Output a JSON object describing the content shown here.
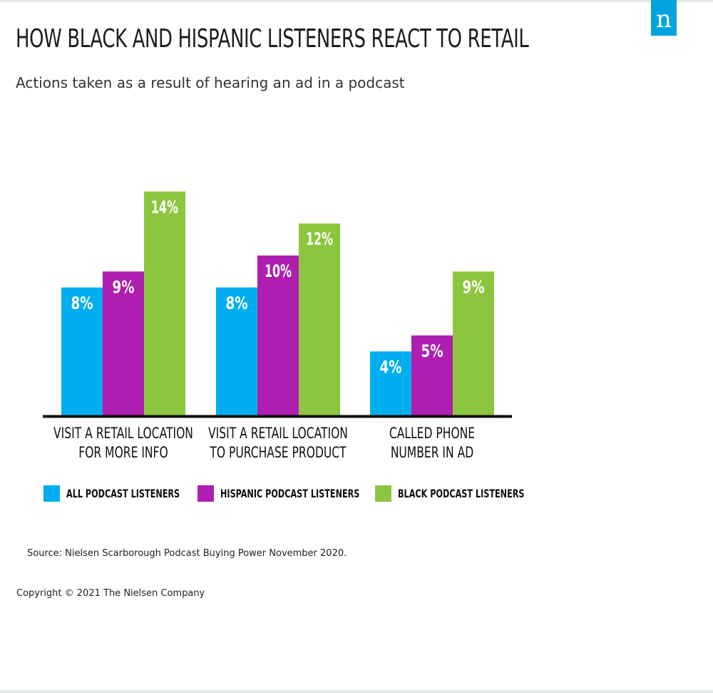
{
  "brand": {
    "logo_letter": "n",
    "logo_color": "#00a3e0"
  },
  "chart_data": {
    "type": "bar",
    "title": "HOW BLACK AND HISPANIC LISTENERS REACT TO RETAIL",
    "subtitle": "Actions taken as a result of hearing an ad in a podcast",
    "categories": [
      [
        "VISIT A RETAIL LOCATION",
        "FOR MORE INFO"
      ],
      [
        "VISIT A RETAIL LOCATION",
        "TO PURCHASE PRODUCT"
      ],
      [
        "CALLED PHONE",
        "NUMBER IN AD"
      ]
    ],
    "series": [
      {
        "name": "ALL PODCAST LISTENERS",
        "color": "#00aeef",
        "values": [
          8,
          8,
          4
        ]
      },
      {
        "name": "HISPANIC PODCAST LISTENERS",
        "color": "#ae1eb0",
        "values": [
          9,
          10,
          5
        ]
      },
      {
        "name": "BLACK PODCAST LISTENERS",
        "color": "#8cc63f",
        "values": [
          14,
          12,
          9
        ]
      }
    ],
    "value_suffix": "%",
    "ylim": [
      0,
      14
    ],
    "grid": false,
    "legend_position": "bottom"
  },
  "footer": {
    "source": "Source: Nielsen Scarborough Podcast Buying Power November 2020.",
    "copyright": "Copyright © 2021 The Nielsen Company"
  }
}
